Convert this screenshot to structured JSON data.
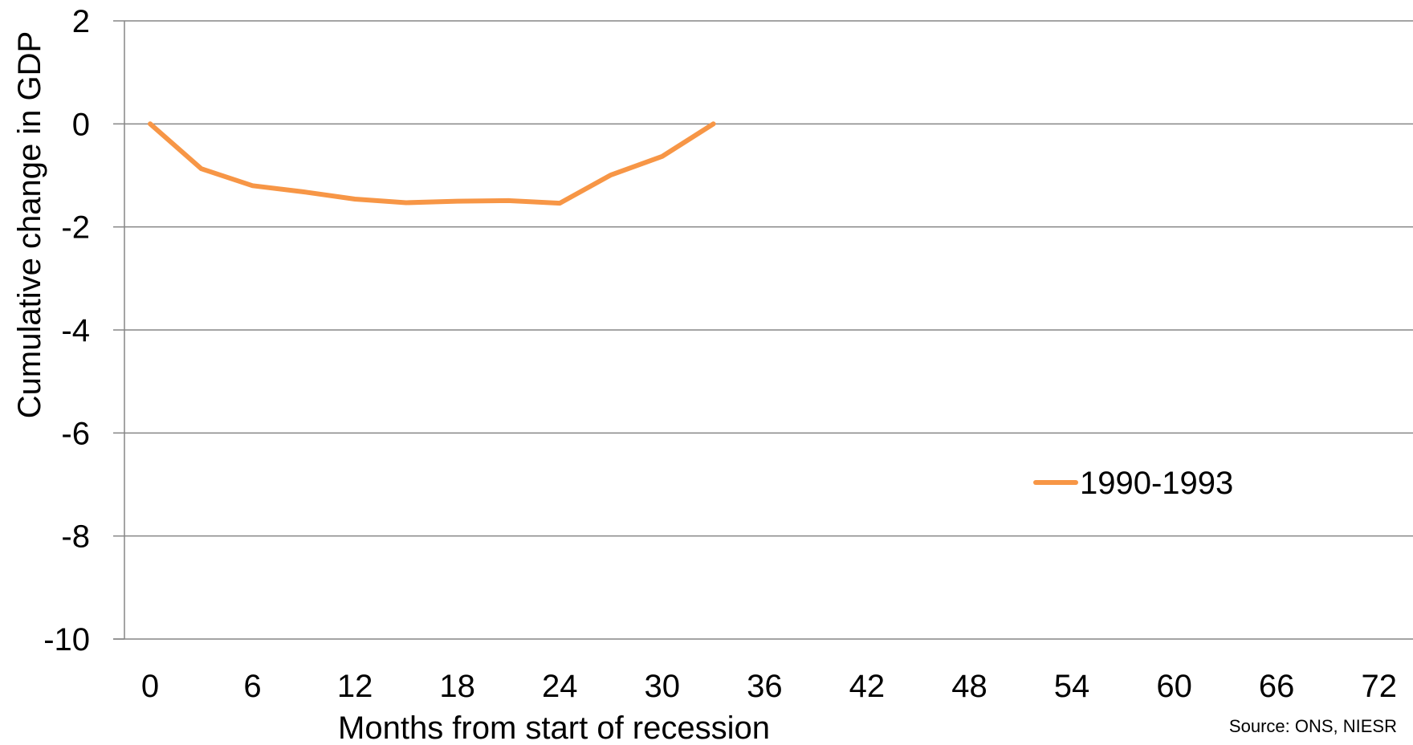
{
  "chart_data": {
    "type": "line",
    "xlabel": "Months from start of recession",
    "ylabel": "Cumulative change in GDP",
    "xlim": [
      -3,
      75
    ],
    "ylim": [
      -10,
      2
    ],
    "x_ticks": [
      0,
      6,
      12,
      18,
      24,
      30,
      36,
      42,
      48,
      54,
      60,
      66,
      72
    ],
    "y_ticks": [
      2,
      0,
      -2,
      -4,
      -6,
      -8,
      -10
    ],
    "grid": "horizontal",
    "legend": "right",
    "series": [
      {
        "name": "1990-1993",
        "color": "#f79646",
        "x": [
          0,
          3,
          6,
          9,
          12,
          15,
          18,
          21,
          24,
          27,
          30,
          33
        ],
        "values": [
          0,
          -0.87,
          -1.2,
          -1.32,
          -1.46,
          -1.53,
          -1.5,
          -1.49,
          -1.54,
          -0.99,
          -0.63,
          0
        ]
      }
    ],
    "source": "Source: ONS, NIESR"
  }
}
